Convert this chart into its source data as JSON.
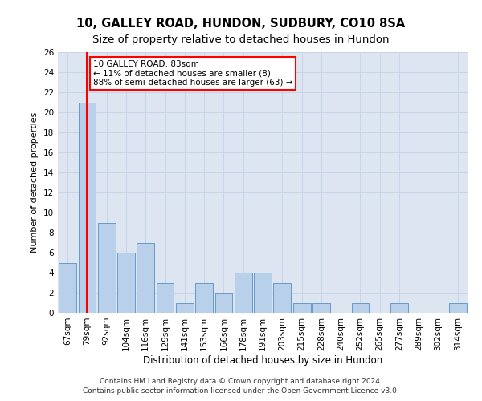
{
  "title": "10, GALLEY ROAD, HUNDON, SUDBURY, CO10 8SA",
  "subtitle": "Size of property relative to detached houses in Hundon",
  "xlabel": "Distribution of detached houses by size in Hundon",
  "ylabel": "Number of detached properties",
  "categories": [
    "67sqm",
    "79sqm",
    "92sqm",
    "104sqm",
    "116sqm",
    "129sqm",
    "141sqm",
    "153sqm",
    "166sqm",
    "178sqm",
    "191sqm",
    "203sqm",
    "215sqm",
    "228sqm",
    "240sqm",
    "252sqm",
    "265sqm",
    "277sqm",
    "289sqm",
    "302sqm",
    "314sqm"
  ],
  "values": [
    5,
    21,
    9,
    6,
    7,
    3,
    1,
    3,
    2,
    4,
    4,
    3,
    1,
    1,
    0,
    1,
    0,
    1,
    0,
    0,
    1
  ],
  "bar_color": "#b8d0ea",
  "bar_edge_color": "#6699cc",
  "vline_x": 1,
  "vline_color": "red",
  "annotation_text": "10 GALLEY ROAD: 83sqm\n← 11% of detached houses are smaller (8)\n88% of semi-detached houses are larger (63) →",
  "annotation_box_color": "white",
  "annotation_box_edge": "red",
  "ylim": [
    0,
    26
  ],
  "yticks": [
    0,
    2,
    4,
    6,
    8,
    10,
    12,
    14,
    16,
    18,
    20,
    22,
    24,
    26
  ],
  "grid_color": "#c8d4e8",
  "background_color": "#dde6f0",
  "footer1": "Contains HM Land Registry data © Crown copyright and database right 2024.",
  "footer2": "Contains public sector information licensed under the Open Government Licence v3.0.",
  "title_fontsize": 10.5,
  "subtitle_fontsize": 9.5,
  "xlabel_fontsize": 8.5,
  "ylabel_fontsize": 8,
  "tick_fontsize": 7.5,
  "annotation_fontsize": 7.5,
  "footer_fontsize": 6.5
}
